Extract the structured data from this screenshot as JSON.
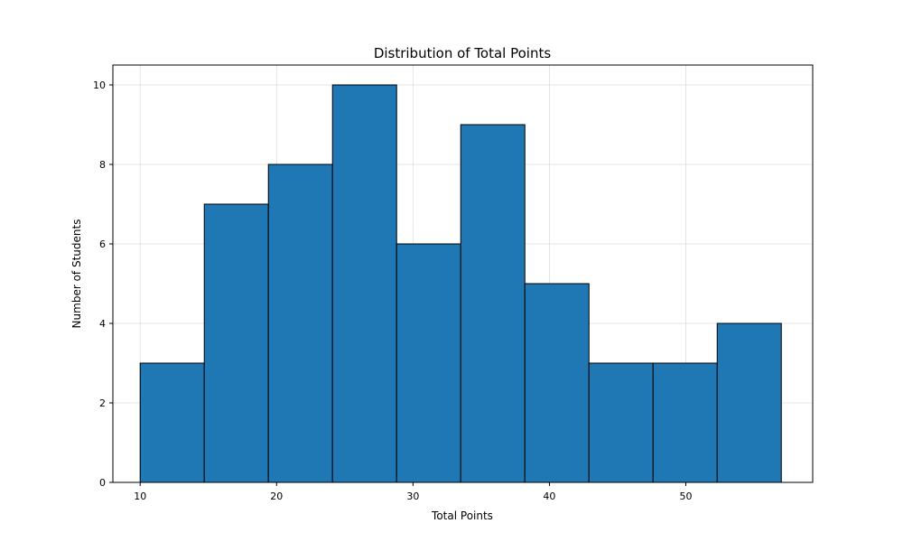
{
  "chart_data": {
    "type": "bar",
    "title": "Distribution of Total Points",
    "xlabel": "Total Points",
    "ylabel": "Number of Students",
    "bin_edges": [
      10,
      14.7,
      19.4,
      24.1,
      28.8,
      33.5,
      38.2,
      42.9,
      47.6,
      52.3,
      57
    ],
    "values": [
      3,
      7,
      8,
      10,
      6,
      9,
      5,
      3,
      3,
      4
    ],
    "xlim": [
      8.0,
      59.3
    ],
    "ylim": [
      0,
      10.5
    ],
    "x_ticks": [
      10,
      20,
      30,
      40,
      50
    ],
    "y_ticks": [
      0,
      2,
      4,
      6,
      8,
      10
    ],
    "grid": true,
    "bar_color": "#1f77b4",
    "edge_color": "#000000"
  }
}
